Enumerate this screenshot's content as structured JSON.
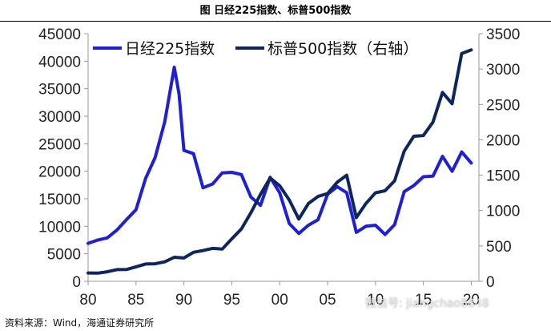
{
  "title": "图  日经225指数、标普500指数",
  "source_note": "资料来源：Wind，海通证券研究所",
  "watermark": "微信号: jiangchao8848",
  "chart_data": {
    "type": "line",
    "legend_position": "top",
    "grid": false,
    "x_ticks": [
      "80",
      "85",
      "90",
      "95",
      "00",
      "05",
      "10",
      "15",
      "20"
    ],
    "y_left_ticks": [
      "0",
      "5000",
      "10000",
      "15000",
      "20000",
      "25000",
      "30000",
      "35000",
      "40000",
      "45000"
    ],
    "y_right_ticks": [
      "0",
      "500",
      "1000",
      "1500",
      "2000",
      "2500",
      "3000",
      "3500"
    ],
    "xlim": [
      1980,
      2020.8
    ],
    "ylim_left": [
      0,
      45000
    ],
    "ylim_right": [
      0,
      3500
    ],
    "series": [
      {
        "name": "日经225指数",
        "axis": "left",
        "color": "#1f1fd6",
        "points": [
          [
            1980.0,
            6900
          ],
          [
            1981.0,
            7500
          ],
          [
            1982.0,
            7900
          ],
          [
            1983.0,
            9300
          ],
          [
            1984.0,
            11200
          ],
          [
            1985.0,
            13000
          ],
          [
            1986.0,
            18700
          ],
          [
            1987.0,
            22500
          ],
          [
            1988.0,
            29000
          ],
          [
            1989.0,
            38900
          ],
          [
            1989.5,
            34000
          ],
          [
            1990.0,
            23800
          ],
          [
            1991.0,
            23200
          ],
          [
            1992.0,
            17000
          ],
          [
            1993.0,
            17700
          ],
          [
            1994.0,
            19700
          ],
          [
            1995.0,
            19800
          ],
          [
            1996.0,
            19400
          ],
          [
            1997.0,
            15300
          ],
          [
            1998.0,
            13800
          ],
          [
            1999.0,
            18900
          ],
          [
            2000.0,
            16100
          ],
          [
            2001.0,
            10500
          ],
          [
            2002.0,
            8700
          ],
          [
            2003.0,
            10200
          ],
          [
            2004.0,
            11200
          ],
          [
            2005.0,
            15800
          ],
          [
            2006.0,
            17200
          ],
          [
            2007.0,
            16100
          ],
          [
            2008.0,
            8900
          ],
          [
            2009.0,
            10000
          ],
          [
            2010.0,
            10200
          ],
          [
            2011.0,
            8500
          ],
          [
            2012.0,
            10300
          ],
          [
            2013.0,
            16300
          ],
          [
            2014.0,
            17400
          ],
          [
            2015.0,
            19000
          ],
          [
            2016.0,
            19100
          ],
          [
            2017.0,
            22700
          ],
          [
            2018.0,
            20000
          ],
          [
            2019.0,
            23500
          ],
          [
            2020.0,
            21500
          ]
        ]
      },
      {
        "name": "标普500指数（右轴）",
        "axis": "right",
        "color": "#0e2560",
        "points": [
          [
            1980.0,
            118
          ],
          [
            1981.0,
            115
          ],
          [
            1982.0,
            135
          ],
          [
            1983.0,
            165
          ],
          [
            1984.0,
            167
          ],
          [
            1985.0,
            205
          ],
          [
            1986.0,
            245
          ],
          [
            1987.0,
            248
          ],
          [
            1988.0,
            275
          ],
          [
            1989.0,
            340
          ],
          [
            1990.0,
            330
          ],
          [
            1991.0,
            410
          ],
          [
            1992.0,
            435
          ],
          [
            1993.0,
            465
          ],
          [
            1994.0,
            455
          ],
          [
            1995.0,
            600
          ],
          [
            1996.0,
            740
          ],
          [
            1997.0,
            970
          ],
          [
            1998.0,
            1230
          ],
          [
            1999.0,
            1460
          ],
          [
            2000.0,
            1350
          ],
          [
            2001.0,
            1150
          ],
          [
            2002.0,
            880
          ],
          [
            2003.0,
            1100
          ],
          [
            2004.0,
            1200
          ],
          [
            2005.0,
            1240
          ],
          [
            2006.0,
            1400
          ],
          [
            2007.0,
            1500
          ],
          [
            2008.0,
            900
          ],
          [
            2009.0,
            1100
          ],
          [
            2010.0,
            1250
          ],
          [
            2011.0,
            1280
          ],
          [
            2012.0,
            1420
          ],
          [
            2013.0,
            1840
          ],
          [
            2014.0,
            2050
          ],
          [
            2015.0,
            2060
          ],
          [
            2016.0,
            2250
          ],
          [
            2017.0,
            2670
          ],
          [
            2018.0,
            2510
          ],
          [
            2019.0,
            3220
          ],
          [
            2020.0,
            3270
          ]
        ]
      }
    ]
  }
}
